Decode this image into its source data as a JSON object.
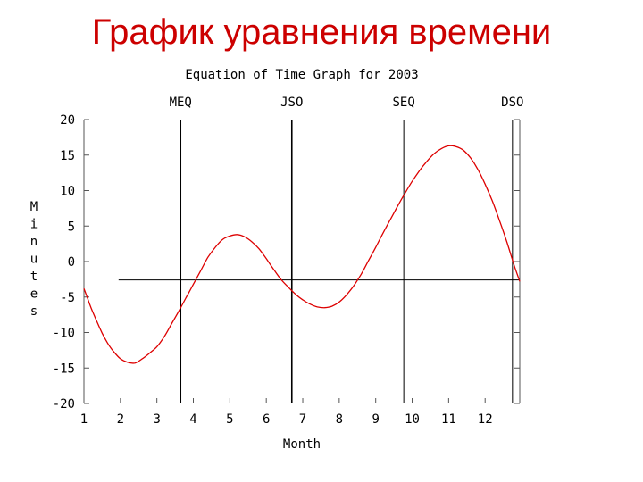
{
  "slide": {
    "title": "График уравнения времени",
    "title_color": "#cc0000"
  },
  "chart_data": {
    "type": "line",
    "title": "Equation of Time Graph for 2003",
    "xlabel": "Month",
    "ylabel": "Minutes",
    "xlim": [
      1,
      12.95
    ],
    "ylim": [
      -20,
      20
    ],
    "xticks": [
      "1",
      "2",
      "3",
      "4",
      "5",
      "6",
      "7",
      "8",
      "9",
      "10",
      "11",
      "12"
    ],
    "yticks": [
      "20",
      "15",
      "10",
      "5",
      "0",
      "-5",
      "-10",
      "-15",
      "-20"
    ],
    "grid": false,
    "line_color": "#dd0000",
    "reference_line_y": -2.6,
    "markers": [
      {
        "label": "MEQ",
        "x": 3.65
      },
      {
        "label": "JSO",
        "x": 6.7
      },
      {
        "label": "SEQ",
        "x": 9.77
      },
      {
        "label": "DSO",
        "x": 12.75
      }
    ],
    "series": [
      {
        "x": [
          1.0,
          1.1,
          1.2,
          1.35,
          1.5,
          1.65,
          1.8,
          2.0,
          2.2,
          2.4,
          2.6,
          2.8,
          3.0,
          3.2,
          3.4,
          3.6,
          3.8,
          4.0,
          4.2,
          4.4,
          4.6,
          4.8,
          5.0,
          5.2,
          5.4,
          5.6,
          5.8,
          6.0,
          6.2,
          6.4,
          6.6,
          6.8,
          7.0,
          7.2,
          7.4,
          7.6,
          7.8,
          8.0,
          8.2,
          8.4,
          8.6,
          8.8,
          9.0,
          9.2,
          9.4,
          9.6,
          9.8,
          10.0,
          10.2,
          10.4,
          10.6,
          10.8,
          11.0,
          11.2,
          11.4,
          11.6,
          11.8,
          12.0,
          12.2,
          12.4,
          12.6,
          12.8,
          12.95
        ],
        "values": [
          -3.8,
          -5.2,
          -6.6,
          -8.4,
          -10.1,
          -11.5,
          -12.6,
          -13.7,
          -14.2,
          -14.3,
          -13.7,
          -12.9,
          -12.0,
          -10.6,
          -8.8,
          -7.0,
          -5.1,
          -3.2,
          -1.3,
          0.6,
          2.0,
          3.1,
          3.6,
          3.8,
          3.5,
          2.8,
          1.8,
          0.4,
          -1.1,
          -2.5,
          -3.6,
          -4.6,
          -5.4,
          -6.0,
          -6.4,
          -6.5,
          -6.3,
          -5.7,
          -4.7,
          -3.4,
          -1.8,
          0.1,
          2.0,
          4.0,
          5.9,
          7.8,
          9.6,
          11.3,
          12.8,
          14.1,
          15.2,
          15.9,
          16.3,
          16.2,
          15.7,
          14.6,
          13.0,
          10.9,
          8.5,
          5.7,
          2.7,
          -0.6,
          -2.8
        ]
      }
    ]
  }
}
